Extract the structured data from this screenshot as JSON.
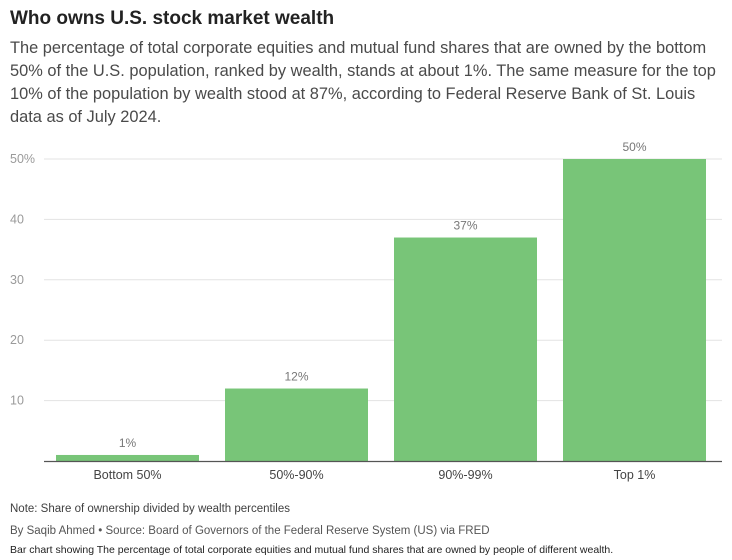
{
  "header": {
    "title": "Who owns U.S. stock market wealth",
    "subtitle": "The percentage of total corporate equities and mutual fund shares that are owned by the bottom 50% of the U.S. population, ranked by wealth, stands at about 1%. The same measure for the top 10% of the population by wealth stood at 87%, according to Federal Reserve Bank of St. Louis data as of July 2024."
  },
  "footer": {
    "note": "Note: Share of ownership divided by wealth percentiles",
    "byline": "By Saqib Ahmed • Source: Board of Governors of the Federal Reserve System (US) via FRED",
    "alt_text": "Bar chart showing The percentage of total corporate equities and mutual fund shares that are owned by people of different wealth."
  },
  "colors": {
    "bar": "#78c578",
    "grid": "#e3e3e3",
    "axis": "#555555",
    "tick_text": "#9a9a9a",
    "label_text": "#777777",
    "category_text": "#444444"
  },
  "chart_data": {
    "type": "bar",
    "categories": [
      "Bottom 50%",
      "50%-90%",
      "90%-99%",
      "Top 1%"
    ],
    "values": [
      1,
      12,
      37,
      50
    ],
    "value_labels": [
      "1%",
      "12%",
      "37%",
      "50%"
    ],
    "y_ticks": [
      10,
      20,
      30,
      40,
      50
    ],
    "y_tick_labels": [
      "10",
      "20",
      "30",
      "40",
      "50%"
    ],
    "ylim": [
      0,
      50
    ],
    "grid": true,
    "legend": "none"
  }
}
